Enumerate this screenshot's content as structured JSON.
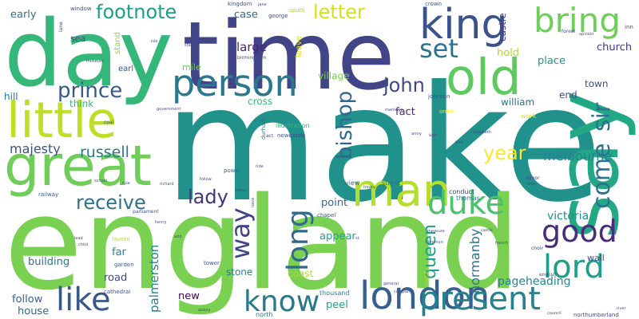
{
  "word_cloud": {
    "background": "#ffffff",
    "words": [
      {
        "text": "make",
        "color": "#21918c"
      },
      {
        "text": "england",
        "color": "#7ad151"
      },
      {
        "text": "time",
        "color": "#414487"
      },
      {
        "text": "day",
        "color": "#35b779"
      },
      {
        "text": "say",
        "color": "#22a884"
      },
      {
        "text": "great",
        "color": "#6ece58"
      },
      {
        "text": "person",
        "color": "#2a788e"
      },
      {
        "text": "little",
        "color": "#bddf26"
      },
      {
        "text": "old",
        "color": "#5ec962"
      },
      {
        "text": "king",
        "color": "#3b528b"
      },
      {
        "text": "bring",
        "color": "#6ece58"
      },
      {
        "text": "man",
        "color": "#b5de2b"
      },
      {
        "text": "london",
        "color": "#355f8d"
      },
      {
        "text": "duke",
        "color": "#4ac16d"
      },
      {
        "text": "present",
        "color": "#26828e"
      },
      {
        "text": "lord",
        "color": "#1f9e89"
      },
      {
        "text": "know",
        "color": "#2a788e"
      },
      {
        "text": "good",
        "color": "#472d7b"
      },
      {
        "text": "like",
        "color": "#38588c"
      },
      {
        "text": "long",
        "color": "#31688e"
      },
      {
        "text": "set",
        "color": "#2c728e"
      },
      {
        "text": "come",
        "color": "#2c728e"
      },
      {
        "text": "sir",
        "color": "#2c728e"
      },
      {
        "text": "way",
        "color": "#414487"
      },
      {
        "text": "footnote",
        "color": "#1f9e89"
      },
      {
        "text": "bishop",
        "color": "#31688e"
      },
      {
        "text": "prince",
        "color": "#38588c"
      },
      {
        "text": "john",
        "color": "#3e4a89"
      },
      {
        "text": "receive",
        "color": "#2c728e"
      },
      {
        "text": "letter",
        "color": "#d2e21b"
      },
      {
        "text": "year",
        "color": "#fde725"
      },
      {
        "text": "lady",
        "color": "#46337e"
      },
      {
        "text": "russell",
        "color": "#2a788e"
      },
      {
        "text": "majesty",
        "color": "#3b528b"
      },
      {
        "text": "queen",
        "color": "#1fa187"
      },
      {
        "text": "melbourne",
        "color": "#26828e"
      },
      {
        "text": "normanby",
        "color": "#2c728e"
      },
      {
        "text": "palmerston",
        "color": "#26828e"
      },
      {
        "text": "victoria",
        "color": "#21918c"
      },
      {
        "text": "pageheading",
        "color": "#26828e"
      },
      {
        "text": "large",
        "color": "#482374"
      },
      {
        "text": "case",
        "color": "#31688e"
      },
      {
        "text": "fact",
        "color": "#482878"
      },
      {
        "text": "hold",
        "color": "#addc30"
      },
      {
        "text": "place",
        "color": "#21918c"
      },
      {
        "text": "church",
        "color": "#443983"
      },
      {
        "text": "castle",
        "color": "#443983"
      },
      {
        "text": "early",
        "color": "#31688e"
      },
      {
        "text": "point",
        "color": "#31688e"
      },
      {
        "text": "appear",
        "color": "#1f9e89"
      },
      {
        "text": "building",
        "color": "#2c728e"
      },
      {
        "text": "road",
        "color": "#414487"
      },
      {
        "text": "far",
        "color": "#26828e"
      },
      {
        "text": "follow",
        "color": "#355f8d"
      },
      {
        "text": "house",
        "color": "#31688e"
      },
      {
        "text": "stone",
        "color": "#2a788e"
      },
      {
        "text": "coast",
        "color": "#addc30"
      },
      {
        "text": "peel",
        "color": "#20a486"
      },
      {
        "text": "new",
        "color": "#440154"
      },
      {
        "text": "village",
        "color": "#7ad151"
      },
      {
        "text": "cross",
        "color": "#35b779"
      },
      {
        "text": "think",
        "color": "#35b779"
      },
      {
        "text": "william",
        "color": "#2c728e"
      },
      {
        "text": "end",
        "color": "#3e4a89"
      },
      {
        "text": "town",
        "color": "#3e4a89"
      },
      {
        "text": "hill",
        "color": "#2c728e"
      },
      {
        "text": "sea",
        "color": "#3b528b"
      },
      {
        "text": "earl",
        "color": "#38588c"
      },
      {
        "text": "mile",
        "color": "#6ece58"
      },
      {
        "text": "stand",
        "color": "#8fd744"
      },
      {
        "text": "leave",
        "color": "#d8e219"
      },
      {
        "text": "wall",
        "color": "#404688"
      },
      {
        "text": "thousand",
        "color": "#26828e"
      },
      {
        "text": "north",
        "color": "#2a788e"
      },
      {
        "text": "view",
        "color": "#31688e"
      },
      {
        "text": "street",
        "color": "#2a788e"
      },
      {
        "text": "conduct",
        "color": "#3e4a89"
      },
      {
        "text": "thomas",
        "color": "#2a788e"
      },
      {
        "text": "illustration",
        "color": "#35b779"
      },
      {
        "text": "newcastle",
        "color": "#3e4a89"
      },
      {
        "text": "kingdom",
        "color": "#3b528b"
      },
      {
        "text": "george",
        "color": "#3e4a89"
      },
      {
        "text": "south",
        "color": "#a0da39"
      },
      {
        "text": "window",
        "color": "#3b528b"
      },
      {
        "text": "birmingham",
        "color": "#3e4a89"
      },
      {
        "text": "durham",
        "color": "#2a788e"
      },
      {
        "text": "johnson",
        "color": "#3e4a89"
      },
      {
        "text": "son",
        "color": "#3e4a89"
      },
      {
        "text": "crown",
        "color": "#38588c"
      },
      {
        "text": "work",
        "color": "#d8e219"
      },
      {
        "text": "order",
        "color": "#fde725"
      },
      {
        "text": "tower",
        "color": "#38588c"
      },
      {
        "text": "garden",
        "color": "#38588c"
      },
      {
        "text": "cathedral",
        "color": "#3b528b"
      },
      {
        "text": "tavern",
        "color": "#b5de2b"
      },
      {
        "text": "chapel",
        "color": "#3b528b"
      },
      {
        "text": "power",
        "color": "#31688e"
      },
      {
        "text": "railway",
        "color": "#355f8d"
      },
      {
        "text": "parliament",
        "color": "#3b528b"
      },
      {
        "text": "henry",
        "color": "#3e4a89"
      },
      {
        "text": "english",
        "color": "#3e4a89"
      },
      {
        "text": "choir",
        "color": "#3e4a89"
      },
      {
        "text": "county",
        "color": "#b5de2b"
      },
      {
        "text": "company",
        "color": "#3e4a89"
      },
      {
        "text": "general",
        "color": "#3e4a89"
      },
      {
        "text": "northumberland",
        "color": "#3e4a89"
      },
      {
        "text": "council",
        "color": "#3e4a89"
      },
      {
        "text": "inn",
        "color": "#3e4a89"
      },
      {
        "text": "forest",
        "color": "#3e4a89"
      },
      {
        "text": "opinion",
        "color": "#3e4a89"
      },
      {
        "text": "minor",
        "color": "#3e4a89"
      },
      {
        "text": "ship",
        "color": "#3e4a89"
      },
      {
        "text": "coal",
        "color": "#3e4a89"
      },
      {
        "text": "act",
        "color": "#3e4a89"
      },
      {
        "text": "army",
        "color": "#3e4a89"
      },
      {
        "text": "lane",
        "color": "#3e4a89"
      },
      {
        "text": "jane",
        "color": "#3e4a89"
      },
      {
        "text": "state",
        "color": "#3e4a89"
      },
      {
        "text": "measure",
        "color": "#3e4a89"
      },
      {
        "text": "common",
        "color": "#3e4a89"
      },
      {
        "text": "french",
        "color": "#3e4a89"
      },
      {
        "text": "elizabeth",
        "color": "#3e4a89"
      },
      {
        "text": "government",
        "color": "#3e4a89"
      },
      {
        "text": "marriage",
        "color": "#3e4a89"
      },
      {
        "text": "treaty",
        "color": "#3e4a89"
      },
      {
        "text": "isle",
        "color": "#3e4a89"
      },
      {
        "text": "museum",
        "color": "#3e4a89"
      },
      {
        "text": "richard",
        "color": "#3e4a89"
      },
      {
        "text": "follow",
        "color": "#3e4a89"
      },
      {
        "text": "nave",
        "color": "#3e4a89"
      },
      {
        "text": "ride",
        "color": "#3e4a89"
      },
      {
        "text": "retain",
        "color": "#3e4a89"
      },
      {
        "text": "school",
        "color": "#3e4a89"
      },
      {
        "text": "rule",
        "color": "#3e4a89"
      },
      {
        "text": "lead",
        "color": "#3e4a89"
      },
      {
        "text": "add",
        "color": "#3e4a89"
      },
      {
        "text": "child",
        "color": "#3e4a89"
      },
      {
        "text": "castle",
        "color": "#3e4a89"
      },
      {
        "text": "river",
        "color": "#3e4a89"
      },
      {
        "text": "lord",
        "color": "#3e4a89"
      },
      {
        "text": "st",
        "color": "#3e4a89"
      },
      {
        "text": "abbey",
        "color": "#3e4a89"
      },
      {
        "text": "poor",
        "color": "#3e4a89"
      }
    ]
  }
}
